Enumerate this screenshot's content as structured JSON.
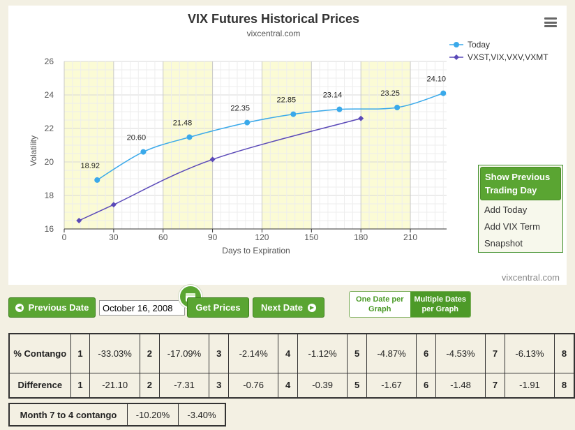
{
  "chart_data": {
    "type": "line",
    "title": "VIX Futures Historical Prices",
    "subtitle": "vixcentral.com",
    "xlabel": "Days to Expiration",
    "ylabel": "Volatility",
    "xlim": [
      0,
      232
    ],
    "ylim": [
      16,
      26
    ],
    "xticks": [
      0,
      30,
      60,
      90,
      120,
      150,
      180,
      210
    ],
    "yticks": [
      16,
      18,
      20,
      22,
      24,
      26
    ],
    "shaded_x_bands": [
      [
        0,
        30
      ],
      [
        60,
        90
      ],
      [
        120,
        150
      ],
      [
        180,
        210
      ]
    ],
    "grid": true,
    "legend_position": "top-right",
    "series": [
      {
        "name": "Today",
        "color": "#3aa9ea",
        "marker": "circle",
        "x": [
          20,
          48,
          76,
          111,
          139,
          167,
          202,
          230
        ],
        "y": [
          18.92,
          20.6,
          21.48,
          22.35,
          22.85,
          23.14,
          23.25,
          24.1
        ],
        "labels": [
          "18.92",
          "20.60",
          "21.48",
          "22.35",
          "22.85",
          "23.14",
          "23.25",
          "24.10"
        ]
      },
      {
        "name": "VXST,VIX,VXV,VXMT",
        "color": "#5a49b8",
        "marker": "diamond",
        "x": [
          9,
          30,
          90,
          180
        ],
        "y": [
          16.5,
          17.45,
          20.15,
          22.6
        ],
        "labels": []
      }
    ],
    "credit": "vixcentral.com"
  },
  "colors": {
    "accent_green": "#5aa532",
    "today_series": "#3aa9ea",
    "index_series": "#5a49b8",
    "band_fill": "#fbfbd5"
  },
  "menu": {
    "icon": "hamburger-menu-icon",
    "items": [
      "Show Previous Trading Day",
      "Add Today",
      "Add VIX Term",
      "Snapshot"
    ]
  },
  "controls": {
    "previous_date": "Previous Date",
    "date_value": "October 16, 2008",
    "get_prices": "Get Prices",
    "next_date": "Next Date",
    "calendar_icon": "calendar-icon",
    "one_date": "One Date per Graph",
    "multiple_dates": "Multiple Dates per Graph"
  },
  "contango_table": {
    "row_contango_label": "% Contango",
    "row_difference_label": "Difference",
    "indices": [
      "1",
      "2",
      "3",
      "4",
      "5",
      "6",
      "7",
      "8"
    ],
    "contango": [
      "-33.03%",
      "-17.09%",
      "-2.14%",
      "-1.12%",
      "-4.87%",
      "-4.53%",
      "-6.13%"
    ],
    "difference": [
      "-21.10",
      "-7.31",
      "-0.76",
      "-0.39",
      "-1.67",
      "-1.48",
      "-1.91"
    ]
  },
  "month7to4": {
    "label": "Month 7 to 4 contango",
    "values": [
      "-10.20%",
      "-3.40%"
    ]
  }
}
